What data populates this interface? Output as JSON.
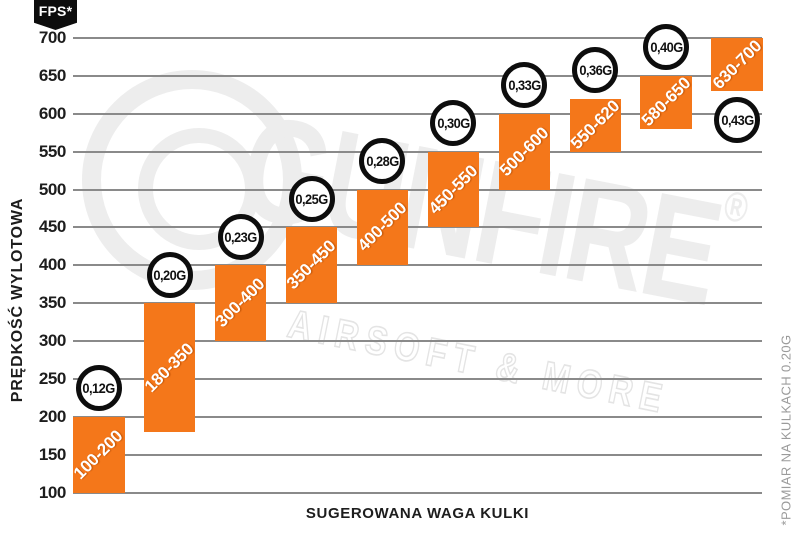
{
  "badge": {
    "label": "FPS*"
  },
  "axes": {
    "y_title": "PRĘDKOŚĆ WYLOTOWA",
    "x_title": "SUGEROWANA WAGA KULKI",
    "side_note": "*POMIAR NA KULKACH 0.20G"
  },
  "watermark": {
    "brand": "GUNFIRE",
    "registered": "®",
    "tagline": "AIRSOFT & MORE"
  },
  "colors": {
    "bar_orange": "#F4771A",
    "grid_gray": "#8A8A8A",
    "badge_black": "#0D0D0D",
    "tick_ink": "#1D1D1D",
    "watermark_gray": "#EDEDED",
    "note_gray": "#9B9B9B"
  },
  "chart_data": {
    "type": "bar",
    "title": "",
    "xlabel": "SUGEROWANA WAGA KULKI",
    "ylabel": "PRĘDKOŚĆ WYLOTOWA",
    "y_unit": "FPS*",
    "ylim": [
      100,
      700
    ],
    "ytick_step": 50,
    "yticks": [
      700,
      650,
      600,
      550,
      500,
      450,
      400,
      350,
      300,
      250,
      200,
      150,
      100
    ],
    "grid": true,
    "legend": false,
    "footnote": "*POMIAR NA KULKACH 0.20G",
    "bars": [
      {
        "weight": "0,12G",
        "fps_min": 100,
        "fps_max": 200,
        "range_label": "100-200",
        "weight_label_position": "above"
      },
      {
        "weight": "0,20G",
        "fps_min": 180,
        "fps_max": 350,
        "range_label": "180-350",
        "weight_label_position": "above"
      },
      {
        "weight": "0,23G",
        "fps_min": 300,
        "fps_max": 400,
        "range_label": "300-400",
        "weight_label_position": "above"
      },
      {
        "weight": "0,25G",
        "fps_min": 350,
        "fps_max": 450,
        "range_label": "350-450",
        "weight_label_position": "above"
      },
      {
        "weight": "0,28G",
        "fps_min": 400,
        "fps_max": 500,
        "range_label": "400-500",
        "weight_label_position": "above"
      },
      {
        "weight": "0,30G",
        "fps_min": 450,
        "fps_max": 550,
        "range_label": "450-550",
        "weight_label_position": "above"
      },
      {
        "weight": "0,33G",
        "fps_min": 500,
        "fps_max": 600,
        "range_label": "500-600",
        "weight_label_position": "above"
      },
      {
        "weight": "0,36G",
        "fps_min": 550,
        "fps_max": 620,
        "range_label": "550-620",
        "weight_label_position": "above"
      },
      {
        "weight": "0,40G",
        "fps_min": 580,
        "fps_max": 650,
        "range_label": "580-650",
        "weight_label_position": "above"
      },
      {
        "weight": "0,43G",
        "fps_min": 630,
        "fps_max": 700,
        "range_label": "630-700",
        "weight_label_position": "below"
      }
    ]
  }
}
